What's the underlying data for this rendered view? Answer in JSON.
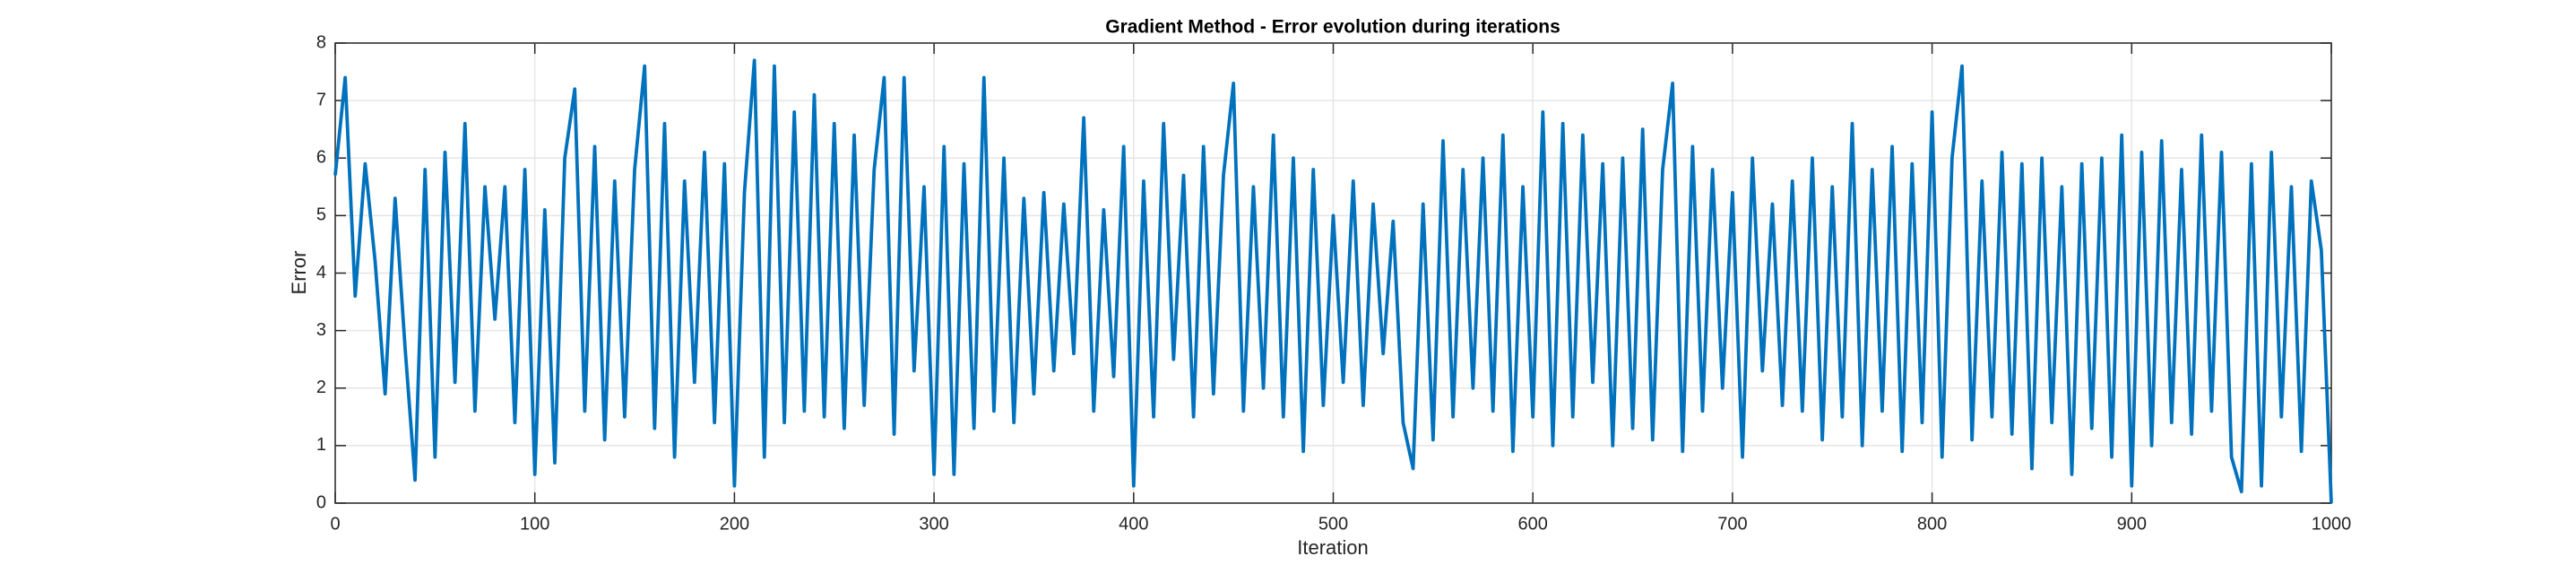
{
  "chart_data": {
    "type": "line",
    "title": "Gradient Method - Error evolution during iterations",
    "xlabel": "Iteration",
    "ylabel": "Error",
    "x": [
      0,
      5,
      10,
      15,
      20,
      25,
      30,
      35,
      40,
      45,
      50,
      55,
      60,
      65,
      70,
      75,
      80,
      85,
      90,
      95,
      100,
      105,
      110,
      115,
      120,
      125,
      130,
      135,
      140,
      145,
      150,
      155,
      160,
      165,
      170,
      175,
      180,
      185,
      190,
      195,
      200,
      205,
      210,
      215,
      220,
      225,
      230,
      235,
      240,
      245,
      250,
      255,
      260,
      265,
      270,
      275,
      280,
      285,
      290,
      295,
      300,
      305,
      310,
      315,
      320,
      325,
      330,
      335,
      340,
      345,
      350,
      355,
      360,
      365,
      370,
      375,
      380,
      385,
      390,
      395,
      400,
      405,
      410,
      415,
      420,
      425,
      430,
      435,
      440,
      445,
      450,
      455,
      460,
      465,
      470,
      475,
      480,
      485,
      490,
      495,
      500,
      505,
      510,
      515,
      520,
      525,
      530,
      535,
      540,
      545,
      550,
      555,
      560,
      565,
      570,
      575,
      580,
      585,
      590,
      595,
      600,
      605,
      610,
      615,
      620,
      625,
      630,
      635,
      640,
      645,
      650,
      655,
      660,
      665,
      670,
      675,
      680,
      685,
      690,
      695,
      700,
      705,
      710,
      715,
      720,
      725,
      730,
      735,
      740,
      745,
      750,
      755,
      760,
      765,
      770,
      775,
      780,
      785,
      790,
      795,
      800,
      805,
      810,
      815,
      820,
      825,
      830,
      835,
      840,
      845,
      850,
      855,
      860,
      865,
      870,
      875,
      880,
      885,
      890,
      895,
      900,
      905,
      910,
      915,
      920,
      925,
      930,
      935,
      940,
      945,
      950,
      955,
      960,
      965,
      970,
      975,
      980,
      985,
      990,
      995,
      1000
    ],
    "series": [
      {
        "name": "Error",
        "color": "#0072bd",
        "values": [
          5.7,
          7.4,
          3.6,
          5.9,
          4.2,
          1.9,
          5.3,
          2.7,
          0.4,
          5.8,
          0.8,
          6.1,
          2.1,
          6.6,
          1.6,
          5.5,
          3.2,
          5.5,
          1.4,
          5.8,
          0.5,
          5.1,
          0.7,
          6.0,
          7.2,
          1.6,
          6.2,
          1.1,
          5.6,
          1.5,
          5.8,
          7.6,
          1.3,
          6.6,
          0.8,
          5.6,
          2.1,
          6.1,
          1.4,
          5.9,
          0.3,
          5.4,
          7.7,
          0.8,
          7.6,
          1.4,
          6.8,
          1.6,
          7.1,
          1.5,
          6.6,
          1.3,
          6.4,
          1.7,
          5.8,
          7.4,
          1.2,
          7.4,
          2.3,
          5.5,
          0.5,
          6.2,
          0.5,
          5.9,
          1.3,
          7.4,
          1.6,
          6.0,
          1.4,
          5.3,
          1.9,
          5.4,
          2.3,
          5.2,
          2.6,
          6.7,
          1.6,
          5.1,
          2.2,
          6.2,
          0.3,
          5.6,
          1.5,
          6.6,
          2.5,
          5.7,
          1.5,
          6.2,
          1.9,
          5.7,
          7.3,
          1.6,
          5.5,
          2.0,
          6.4,
          1.5,
          6.0,
          0.9,
          5.8,
          1.7,
          5.0,
          2.1,
          5.6,
          1.7,
          5.2,
          2.6,
          4.9,
          1.4,
          0.6,
          5.2,
          1.1,
          6.3,
          1.5,
          5.8,
          2.0,
          6.0,
          1.6,
          6.4,
          0.9,
          5.5,
          1.5,
          6.8,
          1.0,
          6.6,
          1.5,
          6.4,
          2.1,
          5.9,
          1.0,
          6.0,
          1.3,
          6.5,
          1.1,
          5.8,
          7.3,
          0.9,
          6.2,
          1.6,
          5.8,
          2.0,
          5.4,
          0.8,
          6.0,
          2.3,
          5.2,
          1.7,
          5.6,
          1.6,
          6.0,
          1.1,
          5.5,
          1.5,
          6.6,
          1.0,
          5.8,
          1.6,
          6.2,
          0.9,
          5.9,
          1.4,
          6.8,
          0.8,
          6.0,
          7.6,
          1.1,
          5.6,
          1.5,
          6.1,
          1.2,
          5.9,
          0.6,
          6.0,
          1.4,
          5.5,
          0.5,
          5.9,
          1.3,
          6.0,
          0.8,
          6.4,
          0.3,
          6.1,
          1.0,
          6.3,
          1.4,
          5.8,
          1.2,
          6.4,
          1.6,
          6.1,
          0.8,
          0.2,
          5.9,
          0.3,
          6.1,
          1.5,
          5.5,
          0.9,
          5.6,
          4.4,
          0.0
        ]
      }
    ],
    "xlim": [
      0,
      1000
    ],
    "xticks": [
      0,
      100,
      200,
      300,
      400,
      500,
      600,
      700,
      800,
      900,
      1000
    ],
    "ylim": [
      0,
      8
    ],
    "yticks": [
      0,
      1,
      2,
      3,
      4,
      5,
      6,
      7,
      8
    ],
    "grid": true
  }
}
